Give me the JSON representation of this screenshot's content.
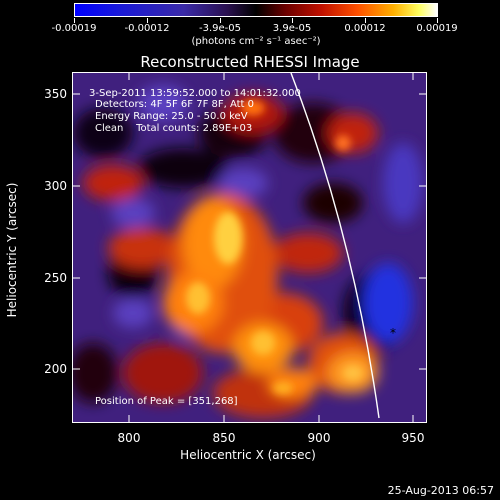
{
  "colorbar": {
    "labels": [
      "-0.00019",
      "-0.00012",
      "-3.9e-05",
      "3.9e-05",
      "0.00012",
      "0.00019"
    ],
    "unit": "(photons cm⁻² s⁻¹ asec⁻²)"
  },
  "title": "Reconstructed RHESSI Image",
  "info": {
    "line1": "3-Sep-2011 13:59:52.000 to 14:01:32.000",
    "line2": "Detectors: 4F 5F 6F 7F 8F, Att 0",
    "line3": "Energy Range: 25.0 - 50.0 keV",
    "line4": "Clean    Total counts: 2.89E+03",
    "peak": "Position of Peak = [351,268]"
  },
  "axes": {
    "xlabel": "Heliocentric X (arcsec)",
    "ylabel": "Heliocentric Y (arcsec)",
    "xticks": [
      "800",
      "850",
      "900",
      "950"
    ],
    "yticks": [
      "350",
      "300",
      "250",
      "200"
    ]
  },
  "timestamp": "25-Aug-2013 06:57",
  "colors": {
    "background": "#000000",
    "foreground": "#ffffff"
  }
}
